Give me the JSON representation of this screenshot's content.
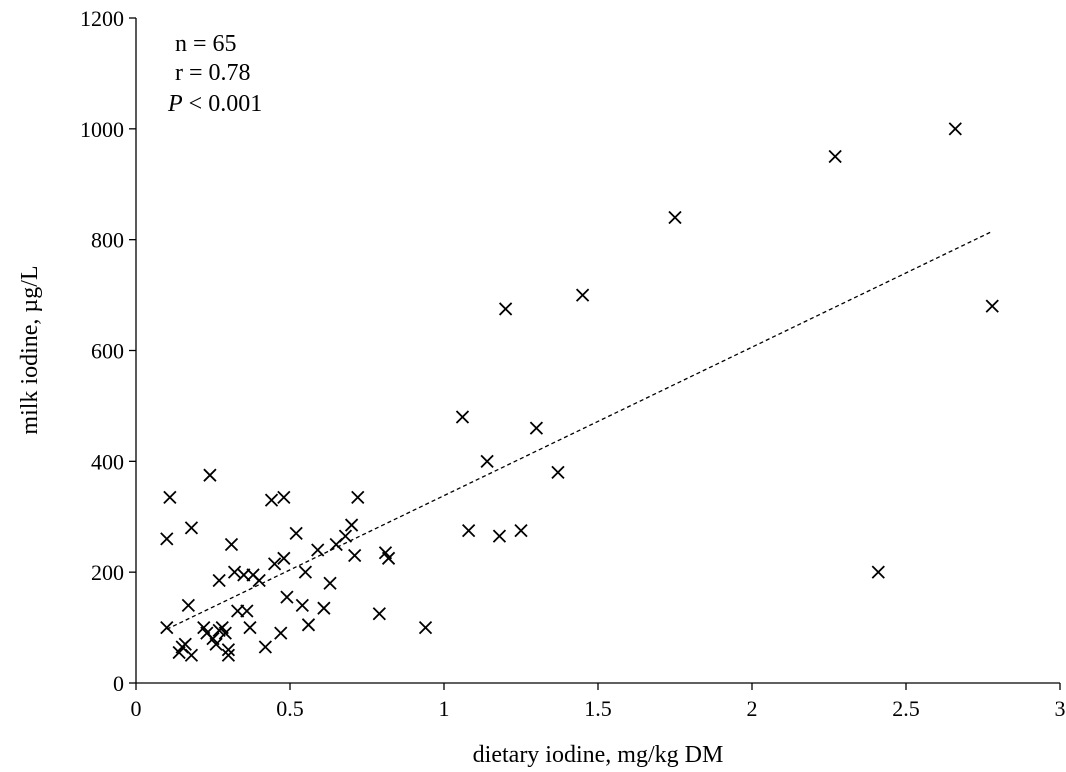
{
  "chart_data": {
    "type": "scatter",
    "title": "",
    "xlabel": "dietary iodine, mg/kg DM",
    "ylabel": "milk iodine, µg/L",
    "xlim": [
      0,
      3
    ],
    "ylim": [
      0,
      1200
    ],
    "x_ticks": [
      0,
      0.5,
      1,
      1.5,
      2,
      2.5,
      3
    ],
    "x_tick_labels": [
      "0",
      "0.5",
      "1",
      "1.5",
      "2",
      "2.5",
      "3"
    ],
    "y_ticks": [
      0,
      200,
      400,
      600,
      800,
      1000,
      1200
    ],
    "y_tick_labels": [
      "0",
      "200",
      "400",
      "600",
      "800",
      "1000",
      "1200"
    ],
    "grid": false,
    "marker": "x",
    "stats": {
      "n": "n = 65",
      "r": "r = 0.78",
      "p_symbol": "P",
      "p_rest": " < 0.001"
    },
    "trendline": {
      "style": "dashed",
      "points": [
        [
          0.1,
          97
        ],
        [
          2.78,
          815
        ]
      ]
    },
    "points": [
      [
        0.11,
        335
      ],
      [
        0.1,
        260
      ],
      [
        0.1,
        100
      ],
      [
        0.24,
        375
      ],
      [
        0.18,
        280
      ],
      [
        0.15,
        65
      ],
      [
        0.14,
        55
      ],
      [
        0.16,
        70
      ],
      [
        0.18,
        50
      ],
      [
        0.17,
        140
      ],
      [
        0.22,
        100
      ],
      [
        0.23,
        90
      ],
      [
        0.25,
        80
      ],
      [
        0.26,
        70
      ],
      [
        0.27,
        95
      ],
      [
        0.28,
        100
      ],
      [
        0.29,
        90
      ],
      [
        0.3,
        60
      ],
      [
        0.3,
        50
      ],
      [
        0.27,
        185
      ],
      [
        0.31,
        250
      ],
      [
        0.32,
        200
      ],
      [
        0.33,
        130
      ],
      [
        0.35,
        195
      ],
      [
        0.36,
        130
      ],
      [
        0.38,
        195
      ],
      [
        0.37,
        100
      ],
      [
        0.4,
        185
      ],
      [
        0.42,
        65
      ],
      [
        0.44,
        330
      ],
      [
        0.45,
        215
      ],
      [
        0.48,
        335
      ],
      [
        0.48,
        225
      ],
      [
        0.49,
        155
      ],
      [
        0.47,
        90
      ],
      [
        0.52,
        270
      ],
      [
        0.54,
        140
      ],
      [
        0.56,
        105
      ],
      [
        0.55,
        200
      ],
      [
        0.59,
        240
      ],
      [
        0.61,
        135
      ],
      [
        0.63,
        180
      ],
      [
        0.65,
        250
      ],
      [
        0.68,
        265
      ],
      [
        0.7,
        285
      ],
      [
        0.71,
        230
      ],
      [
        0.72,
        335
      ],
      [
        0.79,
        125
      ],
      [
        0.81,
        235
      ],
      [
        0.82,
        225
      ],
      [
        0.94,
        100
      ],
      [
        1.06,
        480
      ],
      [
        1.08,
        275
      ],
      [
        1.14,
        400
      ],
      [
        1.18,
        265
      ],
      [
        1.2,
        675
      ],
      [
        1.25,
        275
      ],
      [
        1.3,
        460
      ],
      [
        1.37,
        380
      ],
      [
        1.45,
        700
      ],
      [
        1.75,
        840
      ],
      [
        2.27,
        950
      ],
      [
        2.41,
        200
      ],
      [
        2.66,
        1000
      ],
      [
        2.78,
        680
      ]
    ]
  }
}
